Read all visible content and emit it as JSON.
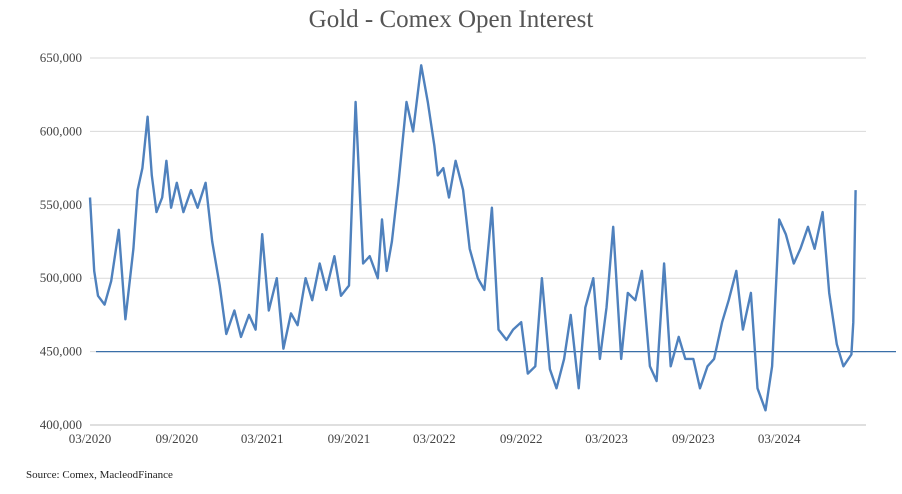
{
  "chart_data": {
    "type": "line",
    "title": "Gold - Comex Open Interest",
    "xlabel": "",
    "ylabel": "",
    "ylim": [
      400000,
      650000
    ],
    "yticks": [
      400000,
      450000,
      500000,
      550000,
      600000,
      650000
    ],
    "ytick_labels": [
      "400,000",
      "450,000",
      "500,000",
      "550,000",
      "600,000",
      "650,000"
    ],
    "xlim": [
      "2020-03-01",
      "2024-09-01"
    ],
    "xticks": [
      "2020-03-01",
      "2020-09-01",
      "2021-03-01",
      "2021-09-01",
      "2022-03-01",
      "2022-09-01",
      "2023-03-01",
      "2023-09-01",
      "2024-03-01"
    ],
    "xtick_labels": [
      "03/2020",
      "09/2020",
      "03/2021",
      "09/2021",
      "03/2022",
      "09/2022",
      "03/2023",
      "09/2023",
      "03/2024"
    ],
    "grid": "horizontal",
    "line_color": "#4f81bd",
    "reference_line": {
      "y": 450000,
      "color": "#3a6fa8"
    },
    "series": [
      {
        "x": [
          "2020-03-01",
          "2020-03-10",
          "2020-03-18",
          "2020-04-01",
          "2020-04-15",
          "2020-05-01",
          "2020-05-15",
          "2020-06-01",
          "2020-06-10",
          "2020-06-20",
          "2020-07-01",
          "2020-07-10",
          "2020-07-20",
          "2020-08-01",
          "2020-08-10",
          "2020-08-20",
          "2020-09-01",
          "2020-09-15",
          "2020-10-01",
          "2020-10-15",
          "2020-11-01",
          "2020-11-15",
          "2020-12-01",
          "2020-12-15",
          "2021-01-01",
          "2021-01-15",
          "2021-02-01",
          "2021-02-15",
          "2021-03-01",
          "2021-03-15",
          "2021-04-01",
          "2021-04-15",
          "2021-05-01",
          "2021-05-15",
          "2021-06-01",
          "2021-06-15",
          "2021-07-01",
          "2021-07-15",
          "2021-08-01",
          "2021-08-15",
          "2021-09-01",
          "2021-09-15",
          "2021-10-01",
          "2021-10-15",
          "2021-11-01",
          "2021-11-10",
          "2021-11-20",
          "2021-12-01",
          "2021-12-15",
          "2022-01-01",
          "2022-01-15",
          "2022-02-01",
          "2022-02-15",
          "2022-03-01",
          "2022-03-08",
          "2022-03-20",
          "2022-04-01",
          "2022-04-15",
          "2022-05-01",
          "2022-05-15",
          "2022-06-01",
          "2022-06-15",
          "2022-07-01",
          "2022-07-15",
          "2022-08-01",
          "2022-08-15",
          "2022-09-01",
          "2022-09-15",
          "2022-10-01",
          "2022-10-15",
          "2022-11-01",
          "2022-11-15",
          "2022-12-01",
          "2022-12-15",
          "2023-01-01",
          "2023-01-15",
          "2023-02-01",
          "2023-02-15",
          "2023-03-01",
          "2023-03-15",
          "2023-04-01",
          "2023-04-15",
          "2023-05-01",
          "2023-05-15",
          "2023-06-01",
          "2023-06-15",
          "2023-07-01",
          "2023-07-15",
          "2023-08-01",
          "2023-08-15",
          "2023-09-01",
          "2023-09-15",
          "2023-10-01",
          "2023-10-15",
          "2023-11-01",
          "2023-11-15",
          "2023-12-01",
          "2023-12-15",
          "2024-01-01",
          "2024-01-15",
          "2024-02-01",
          "2024-02-15",
          "2024-03-01",
          "2024-03-15",
          "2024-04-01",
          "2024-04-15",
          "2024-05-01",
          "2024-05-15",
          "2024-06-01",
          "2024-06-15",
          "2024-07-01",
          "2024-07-15",
          "2024-08-01",
          "2024-08-05",
          "2024-08-10"
        ],
        "values": [
          555000,
          505000,
          488000,
          482000,
          498000,
          533000,
          472000,
          520000,
          560000,
          575000,
          610000,
          570000,
          545000,
          555000,
          580000,
          548000,
          565000,
          545000,
          560000,
          548000,
          565000,
          525000,
          495000,
          462000,
          478000,
          460000,
          475000,
          465000,
          530000,
          478000,
          500000,
          452000,
          476000,
          468000,
          500000,
          485000,
          510000,
          492000,
          515000,
          488000,
          495000,
          620000,
          510000,
          515000,
          500000,
          540000,
          505000,
          525000,
          565000,
          620000,
          600000,
          645000,
          620000,
          590000,
          570000,
          575000,
          555000,
          580000,
          560000,
          520000,
          500000,
          492000,
          548000,
          465000,
          458000,
          465000,
          470000,
          435000,
          440000,
          500000,
          438000,
          425000,
          445000,
          475000,
          425000,
          480000,
          500000,
          445000,
          480000,
          535000,
          445000,
          490000,
          485000,
          505000,
          440000,
          430000,
          510000,
          440000,
          460000,
          445000,
          445000,
          425000,
          440000,
          445000,
          470000,
          485000,
          505000,
          465000,
          490000,
          425000,
          410000,
          440000,
          540000,
          530000,
          510000,
          520000,
          535000,
          520000,
          545000,
          490000,
          455000,
          440000,
          448000,
          470000,
          560000
        ]
      }
    ],
    "source": "Source: Comex,  MacleodFinance"
  }
}
